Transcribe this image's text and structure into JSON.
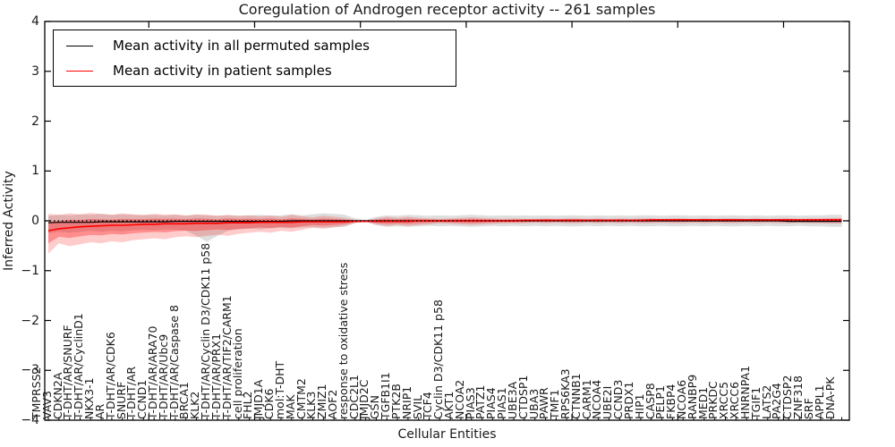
{
  "title": "Coregulation of Androgen receptor activity -- 261 samples",
  "axes": {
    "ylabel": "Inferred Activity",
    "xlabel": "Cellular Entities",
    "yticks": [
      "4",
      "3",
      "2",
      "1",
      "0",
      "−1",
      "−2",
      "−3",
      "−4"
    ],
    "ytick_values": [
      4,
      3,
      2,
      1,
      0,
      -1,
      -2,
      -3,
      -4
    ]
  },
  "legend": {
    "items": [
      {
        "label": "Mean activity in all permuted samples",
        "color": "#000000"
      },
      {
        "label": "Mean activity in patient samples",
        "color": "#ff0000"
      }
    ]
  },
  "colors": {
    "patient_line": "#ff0000",
    "permuted_line": "#000000",
    "patient_band": "#ff0000",
    "permuted_band": "#8a8a8a",
    "zero_line": "#000000",
    "axis": "#000000"
  },
  "chart_data": {
    "type": "line",
    "title": "Coregulation of Androgen receptor activity -- 261 samples",
    "xlabel": "Cellular Entities",
    "ylabel": "Inferred Activity",
    "ylim": [
      -4,
      4
    ],
    "grid": false,
    "legend_position": "upper left",
    "zero_line": {
      "y": 0,
      "style": "dotted",
      "color": "#000000"
    },
    "categories": [
      "TMPRSS2",
      "VAV3",
      "CDKN2A",
      "T-DHT/AR/SNURF",
      "T-DHT/AR/CyclinD1",
      "NKX3-1",
      "AR",
      "T-DHT/AR/CDK6",
      "SNURF",
      "T-DHT/AR",
      "CCND1",
      "T-DHT/AR/ARA70",
      "T-DHT/AR/Ubc9",
      "T-DHT/AR/Caspase 8",
      "BRCA1",
      "KLK2",
      "T-DHT/AR/Cyclin D3/CDK11 p58",
      "T-DHT/AR/PRX1",
      "T-DHT/AR/TIF2/CARM1",
      "cell proliferation",
      "FHL2",
      "JMJD1A",
      "CDK6",
      "mol:T-DHT",
      "MAK",
      "CMTM2",
      "KLK3",
      "ZMIZ1",
      "AOF2",
      "response to oxidative stress",
      "CDC2L1",
      "JMJD2C",
      "GSN",
      "TGFB1I1",
      "PTK2B",
      "NRIP1",
      "SVIL",
      "TCF4",
      "Cyclin D3/CDK11 p58",
      "AKT1",
      "NCOA2",
      "PIAS3",
      "PATZ1",
      "PIAS4",
      "PIAS1",
      "UBE3A",
      "CTDSP1",
      "UBA3",
      "PAWR",
      "TMF1",
      "RPS6KA3",
      "CTNNB1",
      "CARM1",
      "NCOA4",
      "UBE2I",
      "CCND3",
      "PRDX1",
      "HIP1",
      "CASP8",
      "PELP1",
      "FKBP4",
      "NCOA6",
      "RANBP9",
      "MED1",
      "PRKDC",
      "XRCC5",
      "XRCC6",
      "HNRNPA1",
      "TGIF1",
      "LATS2",
      "PA2G4",
      "CTDSP2",
      "ZNF318",
      "SRF",
      "APPL1",
      "DNA-PK"
    ],
    "series": [
      {
        "name": "Mean activity in all permuted samples",
        "color": "#000000",
        "band_color": "#8a8a8a",
        "values": [
          -0.04,
          -0.03,
          -0.03,
          -0.03,
          -0.03,
          -0.02,
          -0.02,
          -0.02,
          -0.02,
          -0.02,
          -0.02,
          -0.02,
          -0.01,
          -0.01,
          -0.01,
          -0.01,
          -0.01,
          -0.01,
          -0.01,
          -0.01,
          -0.01,
          -0.01,
          -0.01,
          0.0,
          0.0,
          0.0,
          0.0,
          0.0,
          0.0,
          0.0,
          0.0,
          0.0,
          0.0,
          0.0,
          0.0,
          0.0,
          0.0,
          0.0,
          0.0,
          0.0,
          0.0,
          0.0,
          0.0,
          0.0,
          0.0,
          0.0,
          0.0,
          0.0,
          0.0,
          0.0,
          0.0,
          0.0,
          0.0,
          0.0,
          0.0,
          0.0,
          0.0,
          0.0,
          0.0,
          0.0,
          0.0,
          0.0,
          0.0,
          0.0,
          0.0,
          0.0,
          0.0,
          0.0,
          0.0,
          0.0,
          -0.01,
          -0.01,
          -0.01,
          -0.01,
          -0.01,
          -0.01
        ],
        "band_upper": [
          0.1,
          0.12,
          0.11,
          0.13,
          0.12,
          0.14,
          0.12,
          0.13,
          0.12,
          0.11,
          0.12,
          0.11,
          0.12,
          0.1,
          0.12,
          0.11,
          0.1,
          0.11,
          0.1,
          0.11,
          0.12,
          0.1,
          0.11,
          0.13,
          0.11,
          0.13,
          0.15,
          0.14,
          0.12,
          0.05,
          0.02,
          0.08,
          0.11,
          0.1,
          0.12,
          0.11,
          0.1,
          0.11,
          0.1,
          0.11,
          0.12,
          0.11,
          0.1,
          0.11,
          0.1,
          0.11,
          0.1,
          0.11,
          0.1,
          0.11,
          0.11,
          0.1,
          0.11,
          0.1,
          0.11,
          0.1,
          0.11,
          0.11,
          0.1,
          0.11,
          0.11,
          0.1,
          0.11,
          0.1,
          0.11,
          0.11,
          0.1,
          0.11,
          0.1,
          0.11,
          0.11,
          0.1,
          0.11,
          0.11,
          0.12,
          0.12
        ],
        "band_lower": [
          -0.25,
          -0.22,
          -0.24,
          -0.22,
          -0.2,
          -0.22,
          -0.2,
          -0.21,
          -0.19,
          -0.18,
          -0.19,
          -0.17,
          -0.18,
          -0.2,
          -0.3,
          -0.42,
          -0.3,
          -0.2,
          -0.17,
          -0.16,
          -0.17,
          -0.15,
          -0.14,
          -0.15,
          -0.13,
          -0.13,
          -0.14,
          -0.13,
          -0.12,
          -0.05,
          -0.02,
          -0.09,
          -0.12,
          -0.11,
          -0.12,
          -0.11,
          -0.1,
          -0.11,
          -0.1,
          -0.11,
          -0.12,
          -0.11,
          -0.1,
          -0.11,
          -0.1,
          -0.11,
          -0.1,
          -0.11,
          -0.1,
          -0.11,
          -0.11,
          -0.1,
          -0.11,
          -0.1,
          -0.11,
          -0.1,
          -0.11,
          -0.11,
          -0.1,
          -0.11,
          -0.11,
          -0.1,
          -0.11,
          -0.1,
          -0.11,
          -0.11,
          -0.1,
          -0.11,
          -0.1,
          -0.11,
          -0.11,
          -0.1,
          -0.11,
          -0.11,
          -0.12,
          -0.12
        ]
      },
      {
        "name": "Mean activity in patient samples",
        "color": "#ff0000",
        "band_color": "#ff0000",
        "values": [
          -0.2,
          -0.16,
          -0.14,
          -0.12,
          -0.11,
          -0.1,
          -0.09,
          -0.09,
          -0.08,
          -0.07,
          -0.07,
          -0.06,
          -0.06,
          -0.06,
          -0.05,
          -0.05,
          -0.05,
          -0.04,
          -0.04,
          -0.04,
          -0.03,
          -0.03,
          -0.03,
          -0.03,
          -0.02,
          -0.02,
          -0.02,
          -0.02,
          -0.02,
          -0.01,
          -0.01,
          -0.01,
          -0.01,
          -0.01,
          -0.01,
          0.0,
          0.0,
          0.0,
          0.0,
          0.0,
          0.0,
          0.0,
          0.0,
          0.0,
          0.0,
          0.01,
          0.01,
          0.01,
          0.01,
          0.01,
          0.01,
          0.01,
          0.01,
          0.01,
          0.01,
          0.01,
          0.01,
          0.02,
          0.02,
          0.02,
          0.02,
          0.02,
          0.02,
          0.02,
          0.02,
          0.02,
          0.02,
          0.02,
          0.02,
          0.02,
          0.02,
          0.02,
          0.02,
          0.02,
          0.02,
          0.02
        ],
        "band_upper": [
          0.14,
          0.12,
          0.15,
          0.13,
          0.16,
          0.14,
          0.12,
          0.15,
          0.13,
          0.12,
          0.14,
          0.12,
          0.13,
          0.11,
          0.13,
          0.12,
          0.1,
          0.12,
          0.1,
          0.11,
          0.09,
          0.11,
          0.08,
          0.12,
          0.09,
          0.07,
          0.1,
          0.08,
          0.06,
          0.02,
          0.01,
          0.05,
          0.08,
          0.06,
          0.08,
          0.06,
          0.05,
          0.04,
          0.05,
          0.06,
          0.07,
          0.06,
          0.05,
          0.04,
          0.05,
          0.04,
          0.04,
          0.05,
          0.04,
          0.05,
          0.05,
          0.04,
          0.05,
          0.04,
          0.05,
          0.04,
          0.05,
          0.05,
          0.04,
          0.05,
          0.05,
          0.04,
          0.05,
          0.04,
          0.05,
          0.05,
          0.04,
          0.05,
          0.04,
          0.05,
          0.05,
          0.04,
          0.05,
          0.05,
          0.06,
          0.06
        ],
        "band_lower": [
          -0.66,
          -0.45,
          -0.51,
          -0.47,
          -0.43,
          -0.45,
          -0.41,
          -0.43,
          -0.39,
          -0.37,
          -0.35,
          -0.37,
          -0.33,
          -0.31,
          -0.33,
          -0.3,
          -0.28,
          -0.3,
          -0.26,
          -0.24,
          -0.22,
          -0.24,
          -0.2,
          -0.22,
          -0.18,
          -0.14,
          -0.16,
          -0.13,
          -0.1,
          -0.04,
          -0.02,
          -0.07,
          -0.1,
          -0.08,
          -0.1,
          -0.08,
          -0.07,
          -0.05,
          -0.06,
          -0.07,
          -0.08,
          -0.07,
          -0.06,
          -0.05,
          -0.05,
          -0.05,
          -0.04,
          -0.05,
          -0.04,
          -0.05,
          -0.05,
          -0.04,
          -0.05,
          -0.04,
          -0.05,
          -0.04,
          -0.05,
          -0.05,
          -0.04,
          -0.05,
          -0.05,
          -0.04,
          -0.05,
          -0.04,
          -0.05,
          -0.05,
          -0.04,
          -0.05,
          -0.04,
          -0.05,
          -0.05,
          -0.04,
          -0.05,
          -0.05,
          -0.06,
          -0.06
        ]
      }
    ]
  }
}
